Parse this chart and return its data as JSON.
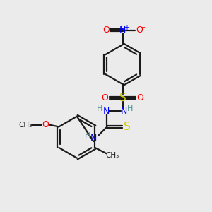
{
  "bg_color": "#ebebeb",
  "bond_color": "#1a1a1a",
  "N_color": "#0000ff",
  "O_color": "#ff0000",
  "S_color": "#cccc00",
  "C_color": "#1a1a1a",
  "H_color": "#4a9090",
  "line_width": 1.6,
  "figsize": [
    3.0,
    3.0
  ],
  "dpi": 100,
  "xlim": [
    0,
    10
  ],
  "ylim": [
    0,
    10
  ]
}
